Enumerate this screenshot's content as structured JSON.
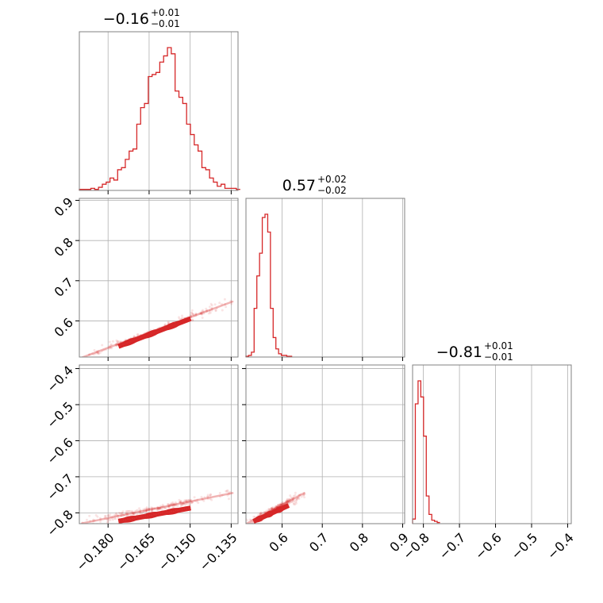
{
  "figure": {
    "background": "#ffffff",
    "accent": "#d62728",
    "grid": "#b0b0b0",
    "frame": "#808080"
  },
  "chart_data": {
    "type": "corner",
    "color": "#d62728",
    "parameters": [
      {
        "title": {
          "value": "−0.16",
          "upper": "+0.01",
          "lower": "−0.01"
        },
        "range": [
          -0.1905,
          -0.1325
        ],
        "ticks": [
          -0.18,
          -0.165,
          -0.15,
          -0.135
        ],
        "tick_labels": [
          "−0.180",
          "−0.165",
          "−0.150",
          "−0.135"
        ],
        "histogram": {
          "bin_edges_start": -0.1905,
          "bin_width": 0.0014,
          "counts": [
            0.5,
            0.5,
            0.5,
            1,
            0.5,
            1.5,
            3,
            4,
            6,
            5,
            10,
            11,
            15,
            19,
            20,
            32,
            40,
            42,
            55,
            56,
            57,
            62,
            65,
            69,
            66,
            48,
            45,
            42,
            32,
            27,
            22,
            19,
            11,
            10,
            6,
            4,
            2,
            3,
            1,
            1,
            1,
            0.5
          ]
        }
      },
      {
        "title": {
          "value": "0.57",
          "upper": "+0.02",
          "lower": "−0.02"
        },
        "range": [
          0.51,
          0.905
        ],
        "ticks": [
          0.6,
          0.7,
          0.8,
          0.9
        ],
        "tick_labels": [
          "0.6",
          "0.7",
          "0.8",
          "0.9"
        ],
        "histogram": {
          "bin_edges_start": 0.51,
          "bin_width": 0.00677,
          "counts": [
            0.5,
            1,
            3,
            30,
            50,
            64,
            86,
            88,
            77,
            30,
            12,
            5,
            2,
            1,
            1,
            0.5,
            0.5
          ]
        }
      },
      {
        "title": {
          "value": "−0.81",
          "upper": "+0.01",
          "lower": "−0.01"
        },
        "range": [
          -0.83,
          -0.39
        ],
        "ticks": [
          -0.8,
          -0.7,
          -0.6,
          -0.5,
          -0.4
        ],
        "tick_labels": [
          "−0.8",
          "−0.7",
          "−0.6",
          "−0.5",
          "−0.4"
        ],
        "histogram": {
          "bin_edges_start": -0.83,
          "bin_width": 0.0076,
          "counts": [
            2,
            52,
            62,
            55,
            38,
            12,
            4,
            1.5,
            1,
            0.5
          ]
        }
      }
    ],
    "pairs": [
      {
        "row": 1,
        "col": 0,
        "x_param": 0,
        "y_param": 1,
        "scatter_line": {
          "x": [
            -0.1895,
            -0.1345
          ],
          "y": [
            0.509,
            0.648
          ]
        },
        "core_line": {
          "x": [
            -0.176,
            -0.15
          ],
          "y": [
            0.537,
            0.605
          ]
        }
      },
      {
        "row": 2,
        "col": 0,
        "x_param": 0,
        "y_param": 2,
        "scatter_line": {
          "x": [
            -0.1895,
            -0.1345
          ],
          "y": [
            -0.829,
            -0.745
          ]
        },
        "core_line": {
          "x": [
            -0.176,
            -0.15
          ],
          "y": [
            -0.823,
            -0.787
          ]
        }
      },
      {
        "row": 2,
        "col": 1,
        "x_param": 1,
        "y_param": 2,
        "scatter_line": {
          "x": [
            0.513,
            0.655
          ],
          "y": [
            -0.829,
            -0.745
          ]
        },
        "core_line": {
          "x": [
            0.53,
            0.615
          ],
          "y": [
            -0.823,
            -0.78
          ]
        }
      }
    ]
  }
}
